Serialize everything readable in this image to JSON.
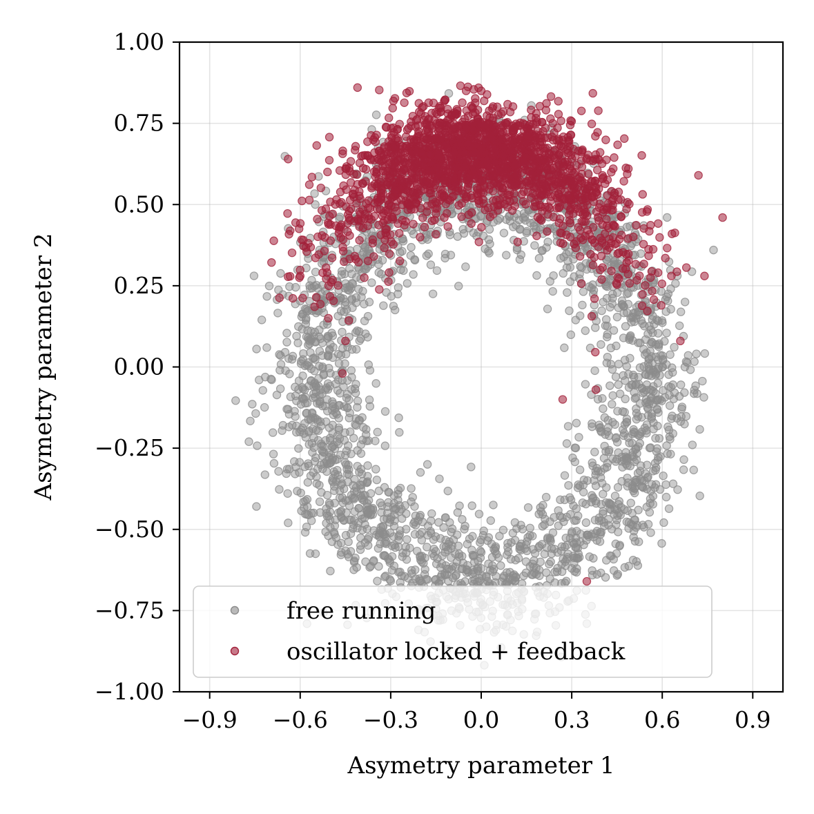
{
  "chart_data": {
    "type": "scatter",
    "title": "",
    "xlabel": "Asymetry parameter 1",
    "ylabel": "Asymetry parameter 2",
    "xlim": [
      -1.0,
      1.0
    ],
    "ylim": [
      -1.0,
      1.0
    ],
    "x_ticks": [
      -0.9,
      -0.6,
      -0.3,
      0.0,
      0.3,
      0.6,
      0.9
    ],
    "x_tick_labels": [
      "−0.9",
      "−0.6",
      "−0.3",
      "0.0",
      "0.3",
      "0.6",
      "0.9"
    ],
    "y_ticks": [
      -1.0,
      -0.75,
      -0.5,
      -0.25,
      0.0,
      0.25,
      0.5,
      0.75,
      1.0
    ],
    "y_tick_labels": [
      "−1.00",
      "−0.75",
      "−0.50",
      "−0.25",
      "0.00",
      "0.25",
      "0.50",
      "0.75",
      "1.00"
    ],
    "grid": true,
    "legend_position": "lower-left",
    "series": [
      {
        "name": "free running",
        "color": "#8c8c8c",
        "distribution": "ring",
        "center": [
          0.0,
          -0.05
        ],
        "radius": [
          0.55,
          0.6
        ],
        "spread": 0.09,
        "count": 2600,
        "points": [
          [
            -0.55,
            0.5
          ],
          [
            -0.4,
            -0.55
          ],
          [
            0.0,
            -0.62
          ],
          [
            0.3,
            -0.62
          ],
          [
            0.6,
            0.0
          ],
          [
            0.7,
            -0.24
          ],
          [
            0.77,
            0.36
          ],
          [
            -0.77,
            -0.23
          ],
          [
            0.35,
            -0.79
          ],
          [
            -0.64,
            -0.48
          ],
          [
            0.5,
            0.38
          ],
          [
            -0.45,
            0.2
          ]
        ]
      },
      {
        "name": "oscillator locked + feedback",
        "color": "#a2203a",
        "distribution": "cap",
        "center": [
          0.0,
          -0.05
        ],
        "radius": [
          0.55,
          0.6
        ],
        "spread": 0.09,
        "count": 2000,
        "points": [
          [
            -0.64,
            0.64
          ],
          [
            -0.41,
            0.86
          ],
          [
            -0.05,
            0.85
          ],
          [
            0.0,
            0.85
          ],
          [
            0.8,
            0.46
          ],
          [
            0.74,
            0.28
          ],
          [
            0.66,
            0.08
          ],
          [
            -0.6,
            0.28
          ],
          [
            -0.45,
            0.08
          ],
          [
            -0.46,
            -0.02
          ],
          [
            0.27,
            -0.1
          ],
          [
            0.38,
            -0.07
          ],
          [
            0.35,
            -0.66
          ],
          [
            0.72,
            0.59
          ]
        ]
      }
    ]
  }
}
